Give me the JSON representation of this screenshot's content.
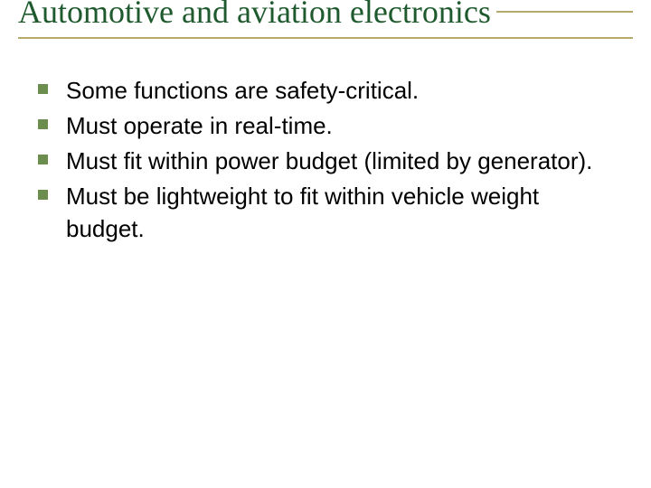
{
  "slide": {
    "title": "Automotive and aviation electronics",
    "title_color": "#1f5a2e",
    "title_fontsize": 36,
    "rule_color": "#b5a96b",
    "bullet_color": "#6b8e4e",
    "bullet_size": 11,
    "body_fontsize": 26,
    "body_color": "#000000",
    "background_color": "#ffffff",
    "bullets": [
      {
        "text": "Some functions are safety-critical."
      },
      {
        "text": "Must operate in real-time."
      },
      {
        "text": "Must fit within power budget (limited by generator)."
      },
      {
        "text": "Must be lightweight to fit within vehicle weight budget."
      }
    ]
  }
}
